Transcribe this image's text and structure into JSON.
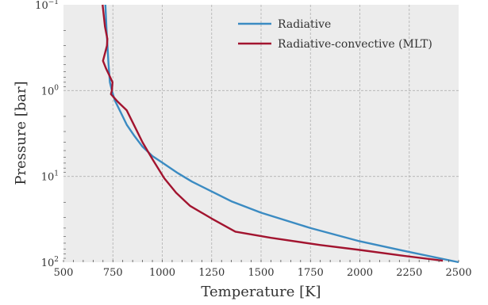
{
  "chart_data": {
    "type": "line",
    "xlabel": "Temperature [K]",
    "ylabel": "Pressure [bar]",
    "xlim": [
      500,
      2500
    ],
    "ylim": [
      0.1,
      100
    ],
    "y_scale": "log",
    "y_inverted": true,
    "grid": true,
    "legend_position": "top-right",
    "x_ticks": [
      500,
      750,
      1000,
      1250,
      1500,
      1750,
      2000,
      2250,
      2500
    ],
    "x_tick_labels": [
      "500",
      "750",
      "1000",
      "1250",
      "1500",
      "1750",
      "2000",
      "2250",
      "2500"
    ],
    "y_ticks": [
      {
        "value": 0.1,
        "base": "10",
        "exp": "−1"
      },
      {
        "value": 1,
        "base": "10",
        "exp": "0"
      },
      {
        "value": 10,
        "base": "10",
        "exp": "1"
      },
      {
        "value": 100,
        "base": "10",
        "exp": "2"
      }
    ],
    "series": [
      {
        "name": "Radiative",
        "color": "#3b8bc2",
        "points": [
          [
            712,
            0.1
          ],
          [
            718,
            0.2
          ],
          [
            728,
            0.5
          ],
          [
            735,
            0.8
          ],
          [
            745,
            1.0
          ],
          [
            760,
            1.3
          ],
          [
            790,
            1.8
          ],
          [
            820,
            2.5
          ],
          [
            860,
            3.4
          ],
          [
            900,
            4.5
          ],
          [
            950,
            5.8
          ],
          [
            1000,
            6.9
          ],
          [
            1080,
            9.2
          ],
          [
            1150,
            11.5
          ],
          [
            1250,
            15
          ],
          [
            1350,
            19.5
          ],
          [
            1500,
            26.5
          ],
          [
            1750,
            40
          ],
          [
            2000,
            57
          ],
          [
            2250,
            76
          ],
          [
            2500,
            100
          ]
        ]
      },
      {
        "name": "Radiative-convective (MLT)",
        "color": "#a2142f",
        "points": [
          [
            698,
            0.1
          ],
          [
            710,
            0.18
          ],
          [
            722,
            0.25
          ],
          [
            720,
            0.3
          ],
          [
            700,
            0.45
          ],
          [
            715,
            0.55
          ],
          [
            730,
            0.65
          ],
          [
            748,
            0.8
          ],
          [
            745,
            1.0
          ],
          [
            740,
            1.1
          ],
          [
            775,
            1.35
          ],
          [
            820,
            1.7
          ],
          [
            860,
            2.6
          ],
          [
            900,
            4.0
          ],
          [
            950,
            6.3
          ],
          [
            1010,
            10.5
          ],
          [
            1070,
            15.5
          ],
          [
            1140,
            22
          ],
          [
            1250,
            31
          ],
          [
            1370,
            44
          ],
          [
            1550,
            52
          ],
          [
            1800,
            63
          ],
          [
            2000,
            72
          ],
          [
            2200,
            83
          ],
          [
            2420,
            96
          ]
        ]
      }
    ]
  }
}
